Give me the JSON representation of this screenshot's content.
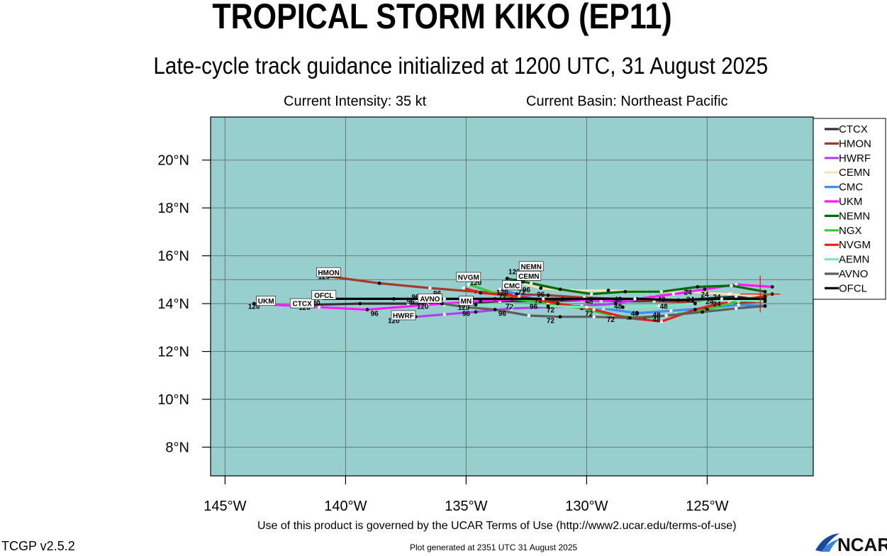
{
  "title": "TROPICAL STORM KIKO (EP11)",
  "subtitle": "Late-cycle track guidance initialized at 1200 UTC, 31 August 2025",
  "current_intensity": "Current Intensity: 35 kt",
  "current_basin": "Current Basin: Northeast Pacific",
  "terms": "Use of this product is governed by the UCAR Terms of Use (http://www2.ucar.edu/terms-of-use)",
  "generated": "Plot generated at 2351 UTC   31 August 2025",
  "version": "TCGP v2.5.2",
  "logo_text": "NCAR",
  "colors": {
    "ocean": "#97CFCE",
    "grid": "#6a7a7a",
    "current_position": "#ff0000"
  },
  "chart_data": {
    "type": "line",
    "xlim": [
      -145.6,
      -120.6
    ],
    "ylim": [
      6.8,
      21.8
    ],
    "xticks": [
      -145,
      -140,
      -135,
      -130,
      -125
    ],
    "xtick_labels": [
      "145°W",
      "140°W",
      "135°W",
      "130°W",
      "125°W"
    ],
    "yticks": [
      8,
      10,
      12,
      14,
      16,
      18,
      20
    ],
    "ytick_labels": [
      "8°N",
      "10°N",
      "12°N",
      "14°N",
      "16°N",
      "18°N",
      "20°N"
    ],
    "grid": true,
    "legend_placement": "right",
    "current_position": {
      "lon": -122.8,
      "lat": 14.4
    },
    "series": [
      {
        "name": "CTCX",
        "color": "#303030",
        "label_at": 120,
        "points": [
          [
            -122.6,
            14.1
          ],
          [
            -123.8,
            14.3
          ],
          [
            -125.2,
            14.2
          ],
          [
            -126.9,
            14.1
          ],
          [
            -128.6,
            14.1
          ],
          [
            -130.2,
            14.15
          ],
          [
            -131.9,
            14.1
          ],
          [
            -133.6,
            14.1
          ],
          [
            -135.4,
            14.0
          ],
          [
            -137.4,
            14.0
          ],
          [
            -139.4,
            14.0
          ],
          [
            -141.4,
            13.95
          ]
        ]
      },
      {
        "name": "HMON",
        "color": "#a23a2c",
        "label_at": 120,
        "points": [
          [
            -122.6,
            14.1
          ],
          [
            -124.0,
            14.0
          ],
          [
            -125.6,
            14.05
          ],
          [
            -127.2,
            14.1
          ],
          [
            -128.6,
            14.2
          ],
          [
            -130.1,
            14.25
          ],
          [
            -131.6,
            14.35
          ],
          [
            -133.0,
            14.4
          ],
          [
            -134.6,
            14.5
          ],
          [
            -136.5,
            14.65
          ],
          [
            -138.6,
            14.85
          ],
          [
            -140.8,
            15.15
          ]
        ]
      },
      {
        "name": "HWRF",
        "color": "#b040ec",
        "label_at": 120,
        "points": [
          [
            -122.6,
            14.3
          ],
          [
            -124.0,
            14.4
          ],
          [
            -125.6,
            14.5
          ],
          [
            -127.2,
            14.3
          ],
          [
            -128.8,
            14.0
          ],
          [
            -130.2,
            13.9
          ],
          [
            -131.6,
            13.85
          ],
          [
            -133.1,
            13.8
          ],
          [
            -134.6,
            13.65
          ],
          [
            -135.9,
            13.55
          ],
          [
            -137.1,
            13.45
          ],
          [
            -138.0,
            13.45
          ]
        ]
      },
      {
        "name": "CEMN",
        "color": "#f6e4b0",
        "label_at": 120,
        "points": [
          [
            -122.6,
            14.3
          ],
          [
            -124.1,
            14.4
          ],
          [
            -125.8,
            14.5
          ],
          [
            -127.5,
            14.5
          ],
          [
            -129.1,
            14.55
          ],
          [
            -130.6,
            14.55
          ],
          [
            -131.9,
            14.65
          ],
          [
            -132.7,
            14.85
          ]
        ]
      },
      {
        "name": "CMC",
        "color": "#3c8ef0",
        "label_at": 120,
        "points": [
          [
            -122.6,
            13.9
          ],
          [
            -123.7,
            13.95
          ],
          [
            -125.1,
            13.8
          ],
          [
            -126.5,
            13.7
          ],
          [
            -127.9,
            13.6
          ],
          [
            -129.3,
            13.8
          ],
          [
            -130.7,
            13.9
          ],
          [
            -131.8,
            14.1
          ],
          [
            -132.9,
            14.4
          ],
          [
            -133.6,
            14.6
          ]
        ]
      },
      {
        "name": "UKM",
        "color": "#ff1aff",
        "label_at": 120,
        "points": [
          [
            -122.3,
            14.7
          ],
          [
            -123.8,
            14.8
          ],
          [
            -125.1,
            14.6
          ],
          [
            -126.4,
            14.4
          ],
          [
            -127.9,
            14.2
          ],
          [
            -129.4,
            14.1
          ],
          [
            -131.0,
            14.2
          ],
          [
            -132.6,
            14.2
          ],
          [
            -134.4,
            14.1
          ],
          [
            -136.6,
            13.95
          ],
          [
            -139.1,
            13.75
          ],
          [
            -141.1,
            13.85
          ],
          [
            -143.8,
            14.0
          ]
        ]
      },
      {
        "name": "NEMN",
        "color": "#006a00",
        "label_at": 120,
        "points": [
          [
            -122.6,
            14.5
          ],
          [
            -124.0,
            14.75
          ],
          [
            -125.4,
            14.7
          ],
          [
            -126.9,
            14.5
          ],
          [
            -128.4,
            14.5
          ],
          [
            -129.8,
            14.4
          ],
          [
            -131.1,
            14.6
          ],
          [
            -132.3,
            14.85
          ],
          [
            -133.3,
            15.05
          ]
        ]
      },
      {
        "name": "NGX",
        "color": "#33cc33",
        "label_at": 120,
        "points": [
          [
            -122.3,
            14.4
          ],
          [
            -123.7,
            14.1
          ],
          [
            -125.0,
            13.75
          ],
          [
            -126.3,
            13.55
          ],
          [
            -127.6,
            13.4
          ],
          [
            -128.9,
            13.5
          ],
          [
            -130.2,
            13.8
          ],
          [
            -131.6,
            14.0
          ],
          [
            -133.1,
            14.2
          ],
          [
            -134.9,
            14.8
          ]
        ]
      },
      {
        "name": "NVGM",
        "color": "#ee1a1a",
        "label_at": 120,
        "points": [
          [
            -122.6,
            14.3
          ],
          [
            -124.1,
            14.1
          ],
          [
            -125.5,
            13.75
          ],
          [
            -126.9,
            13.25
          ],
          [
            -128.3,
            13.4
          ],
          [
            -129.7,
            13.75
          ],
          [
            -131.2,
            14.0
          ],
          [
            -132.8,
            14.3
          ],
          [
            -134.4,
            14.45
          ],
          [
            -135.1,
            14.65
          ]
        ]
      },
      {
        "name": "AEMN",
        "color": "#7ee8c0",
        "label_at": 120,
        "points": [
          [
            -122.6,
            14.1
          ],
          [
            -124.0,
            14.15
          ],
          [
            -125.5,
            14.0
          ],
          [
            -127.0,
            13.9
          ],
          [
            -128.5,
            13.85
          ],
          [
            -130.0,
            13.85
          ],
          [
            -131.6,
            13.9
          ],
          [
            -133.1,
            13.95
          ],
          [
            -134.6,
            13.95
          ],
          [
            -135.9,
            13.95
          ]
        ]
      },
      {
        "name": "AVNO",
        "color": "#5e5e5e",
        "label_at": 120,
        "points": [
          [
            -122.6,
            13.9
          ],
          [
            -123.8,
            13.8
          ],
          [
            -125.2,
            13.65
          ],
          [
            -126.7,
            13.5
          ],
          [
            -128.2,
            13.4
          ],
          [
            -129.7,
            13.45
          ],
          [
            -131.1,
            13.45
          ],
          [
            -132.4,
            13.5
          ],
          [
            -133.8,
            13.75
          ],
          [
            -135.0,
            13.85
          ],
          [
            -136.0,
            14.0
          ],
          [
            -137.0,
            14.15
          ]
        ]
      },
      {
        "name": "OFCL",
        "color": "#000000",
        "label_at": 120,
        "points": [
          [
            -122.6,
            14.2
          ],
          [
            -124.4,
            14.2
          ],
          [
            -126.2,
            14.15
          ],
          [
            -128.0,
            14.2
          ],
          [
            -129.8,
            14.2
          ],
          [
            -131.8,
            14.2
          ],
          [
            -133.8,
            14.2
          ],
          [
            -135.9,
            14.2
          ],
          [
            -138.0,
            14.2
          ],
          [
            -141.0,
            14.2
          ]
        ]
      }
    ],
    "track_labels": [
      {
        "text": "120",
        "lon": -140.9,
        "lat": 15.15
      },
      {
        "text": "120",
        "lon": -143.8,
        "lat": 13.9
      },
      {
        "text": "120",
        "lon": -141.7,
        "lat": 13.85
      },
      {
        "text": "120",
        "lon": -141.3,
        "lat": 14.05
      },
      {
        "text": "120",
        "lon": -138.0,
        "lat": 13.3
      },
      {
        "text": "120",
        "lon": -134.6,
        "lat": 14.9
      },
      {
        "text": "120",
        "lon": -133.0,
        "lat": 15.35
      },
      {
        "text": "120",
        "lon": -132.8,
        "lat": 14.95
      },
      {
        "text": "120",
        "lon": -133.5,
        "lat": 14.5
      },
      {
        "text": "120",
        "lon": -136.8,
        "lat": 13.9
      },
      {
        "text": "120",
        "lon": -135.1,
        "lat": 13.85
      },
      {
        "text": "96",
        "lon": -138.8,
        "lat": 13.6
      },
      {
        "text": "96",
        "lon": -137.3,
        "lat": 14.1
      },
      {
        "text": "96",
        "lon": -137.1,
        "lat": 14.3
      },
      {
        "text": "96",
        "lon": -136.2,
        "lat": 14.45
      },
      {
        "text": "96",
        "lon": -135.0,
        "lat": 13.6
      },
      {
        "text": "96",
        "lon": -133.5,
        "lat": 13.6
      },
      {
        "text": "96",
        "lon": -131.9,
        "lat": 14.4
      },
      {
        "text": "96",
        "lon": -132.2,
        "lat": 13.9
      },
      {
        "text": "96",
        "lon": -132.5,
        "lat": 14.6
      },
      {
        "text": "72",
        "lon": -131.5,
        "lat": 13.3
      },
      {
        "text": "72",
        "lon": -129.9,
        "lat": 13.6
      },
      {
        "text": "72",
        "lon": -129.0,
        "lat": 13.35
      },
      {
        "text": "72",
        "lon": -133.5,
        "lat": 14.3
      },
      {
        "text": "72",
        "lon": -132.7,
        "lat": 14.5
      },
      {
        "text": "72",
        "lon": -132.0,
        "lat": 14.15
      },
      {
        "text": "72",
        "lon": -133.2,
        "lat": 13.9
      },
      {
        "text": "72",
        "lon": -131.5,
        "lat": 13.75
      },
      {
        "text": "48",
        "lon": -127.1,
        "lat": 13.35
      },
      {
        "text": "48",
        "lon": -127.1,
        "lat": 13.55
      },
      {
        "text": "48",
        "lon": -128.0,
        "lat": 13.6
      },
      {
        "text": "48",
        "lon": -128.7,
        "lat": 13.9
      },
      {
        "text": "48",
        "lon": -126.9,
        "lat": 14.2
      },
      {
        "text": "48",
        "lon": -126.8,
        "lat": 13.9
      },
      {
        "text": "48",
        "lon": -129.9,
        "lat": 14.1
      },
      {
        "text": "48",
        "lon": -128.7,
        "lat": 14.2
      },
      {
        "text": "24",
        "lon": -125.8,
        "lat": 14.5
      },
      {
        "text": "24",
        "lon": -125.1,
        "lat": 14.4
      },
      {
        "text": "24",
        "lon": -124.6,
        "lat": 14.3
      },
      {
        "text": "24",
        "lon": -125.7,
        "lat": 14.2
      },
      {
        "text": "24",
        "lon": -124.6,
        "lat": 14.0
      },
      {
        "text": "24",
        "lon": -124.9,
        "lat": 14.1
      }
    ],
    "name_tags": [
      {
        "text": "HMON",
        "lon": -140.7,
        "lat": 15.3
      },
      {
        "text": "UKM",
        "lon": -143.3,
        "lat": 14.1
      },
      {
        "text": "CTCX",
        "lon": -141.8,
        "lat": 14.0
      },
      {
        "text": "OFCL",
        "lon": -140.9,
        "lat": 14.35
      },
      {
        "text": "HWRF",
        "lon": -137.6,
        "lat": 13.5
      },
      {
        "text": "AVNO",
        "lon": -136.5,
        "lat": 14.2
      },
      {
        "text": "MN",
        "lon": -135.0,
        "lat": 14.1
      },
      {
        "text": "NVGM",
        "lon": -134.9,
        "lat": 15.1
      },
      {
        "text": "NEMN",
        "lon": -132.3,
        "lat": 15.55
      },
      {
        "text": "CEMN",
        "lon": -132.4,
        "lat": 15.15
      },
      {
        "text": "CMC",
        "lon": -133.1,
        "lat": 14.75
      }
    ]
  }
}
